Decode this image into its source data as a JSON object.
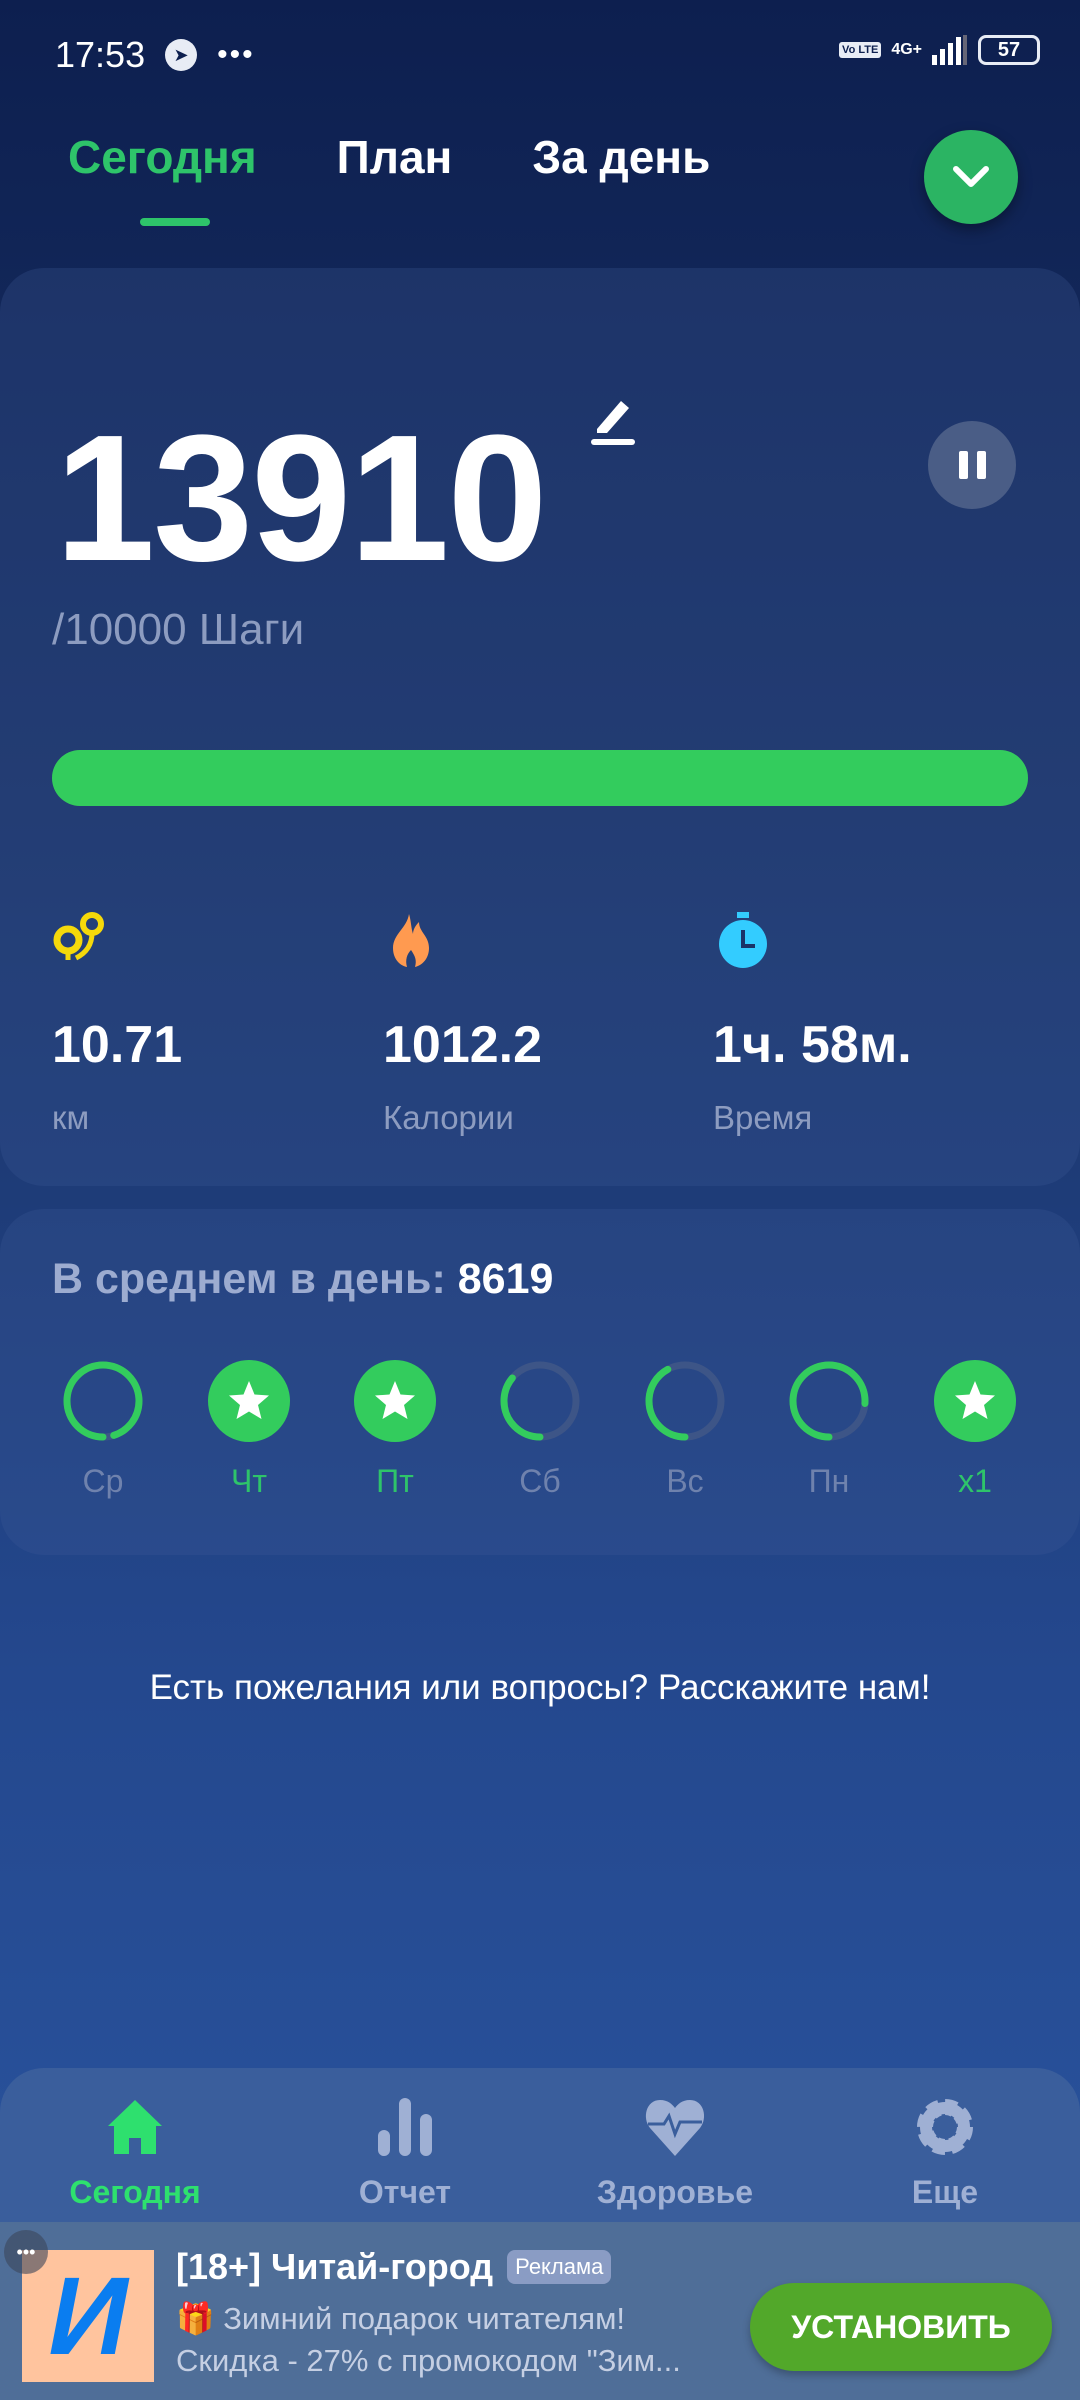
{
  "status_bar": {
    "time": "17:53",
    "network": "4G+",
    "volte": "Vo LTE",
    "battery": "57"
  },
  "tabs": [
    {
      "label": "Сегодня",
      "active": true
    },
    {
      "label": "План"
    },
    {
      "label": "За день"
    }
  ],
  "summary": {
    "steps": "13910",
    "goal": "/10000 Шаги",
    "progress": 1.0,
    "stats": [
      {
        "icon": "route-pin-icon",
        "value": "10.71",
        "label": "км",
        "color": "#f5d90a"
      },
      {
        "icon": "flame-icon",
        "value": "1012.2",
        "label": "Калории",
        "color": "#ff9a50"
      },
      {
        "icon": "stopwatch-icon",
        "value": "1ч. 58м.",
        "label": "Время",
        "color": "#33ccff"
      }
    ]
  },
  "weekly": {
    "label": "В среднем в день:",
    "value": "8619",
    "days": [
      {
        "label": "Ср",
        "progress": 0.95,
        "done": false
      },
      {
        "label": "Чт",
        "progress": 1,
        "done": true
      },
      {
        "label": "Пт",
        "progress": 1,
        "done": true
      },
      {
        "label": "Сб",
        "progress": 0.36,
        "done": false
      },
      {
        "label": "Вс",
        "progress": 0.42,
        "done": false
      },
      {
        "label": "Пн",
        "progress": 0.76,
        "done": false
      },
      {
        "label": "x1",
        "progress": 1,
        "done": true
      }
    ]
  },
  "feedback": "Есть пожелания или вопросы? Расскажите нам!",
  "bottom_nav": [
    {
      "label": "Сегодня",
      "icon": "home-icon",
      "active": true
    },
    {
      "label": "Отчет",
      "icon": "bar-chart-icon"
    },
    {
      "label": "Здоровье",
      "icon": "heart-pulse-icon"
    },
    {
      "label": "Еще",
      "icon": "gear-icon"
    }
  ],
  "ad": {
    "logo": "И",
    "title": "[18+] Читай-город",
    "badge": "Реклама",
    "line1": "🎁 Зимний подарок читателям!",
    "line2": "Скидка - 27% с промокодом \"Зим...",
    "cta": "УСТАНОВИТЬ"
  },
  "colors": {
    "accent": "#2ec46a",
    "progress": "#33cc5d",
    "install": "#52a82a"
  }
}
